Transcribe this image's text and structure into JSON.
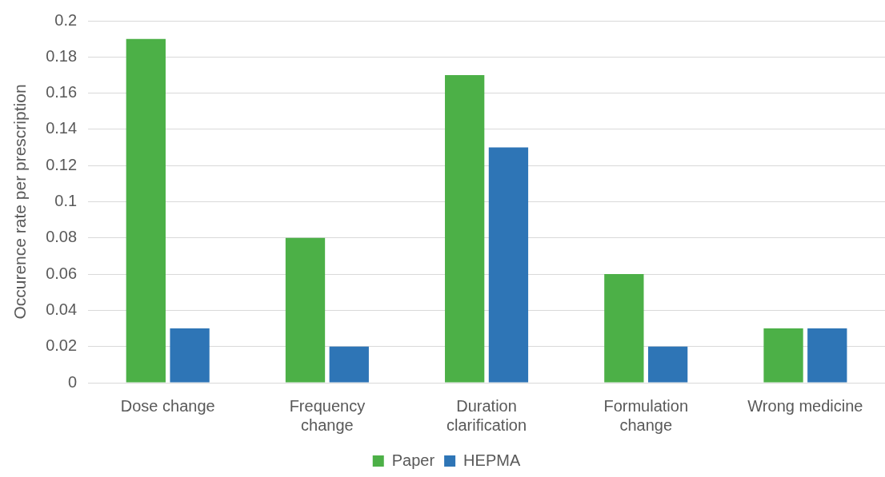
{
  "chart_data": {
    "type": "bar",
    "ylabel": "Occurence rate per prescription",
    "categories": [
      "Dose change",
      "Frequency change",
      "Duration clarification",
      "Formulation change",
      "Wrong medicine"
    ],
    "series": [
      {
        "name": "Paper",
        "color": "#4cb047",
        "values": [
          0.19,
          0.08,
          0.17,
          0.06,
          0.03
        ]
      },
      {
        "name": "HEPMA",
        "color": "#2e75b6",
        "values": [
          0.03,
          0.02,
          0.13,
          0.02,
          0.03
        ]
      }
    ],
    "ylim": [
      0,
      0.2
    ],
    "yticks": [
      0,
      0.02,
      0.04,
      0.06,
      0.08,
      0.1,
      0.12,
      0.14,
      0.16,
      0.18,
      0.2
    ],
    "grid": "y",
    "legend": "bottom"
  }
}
